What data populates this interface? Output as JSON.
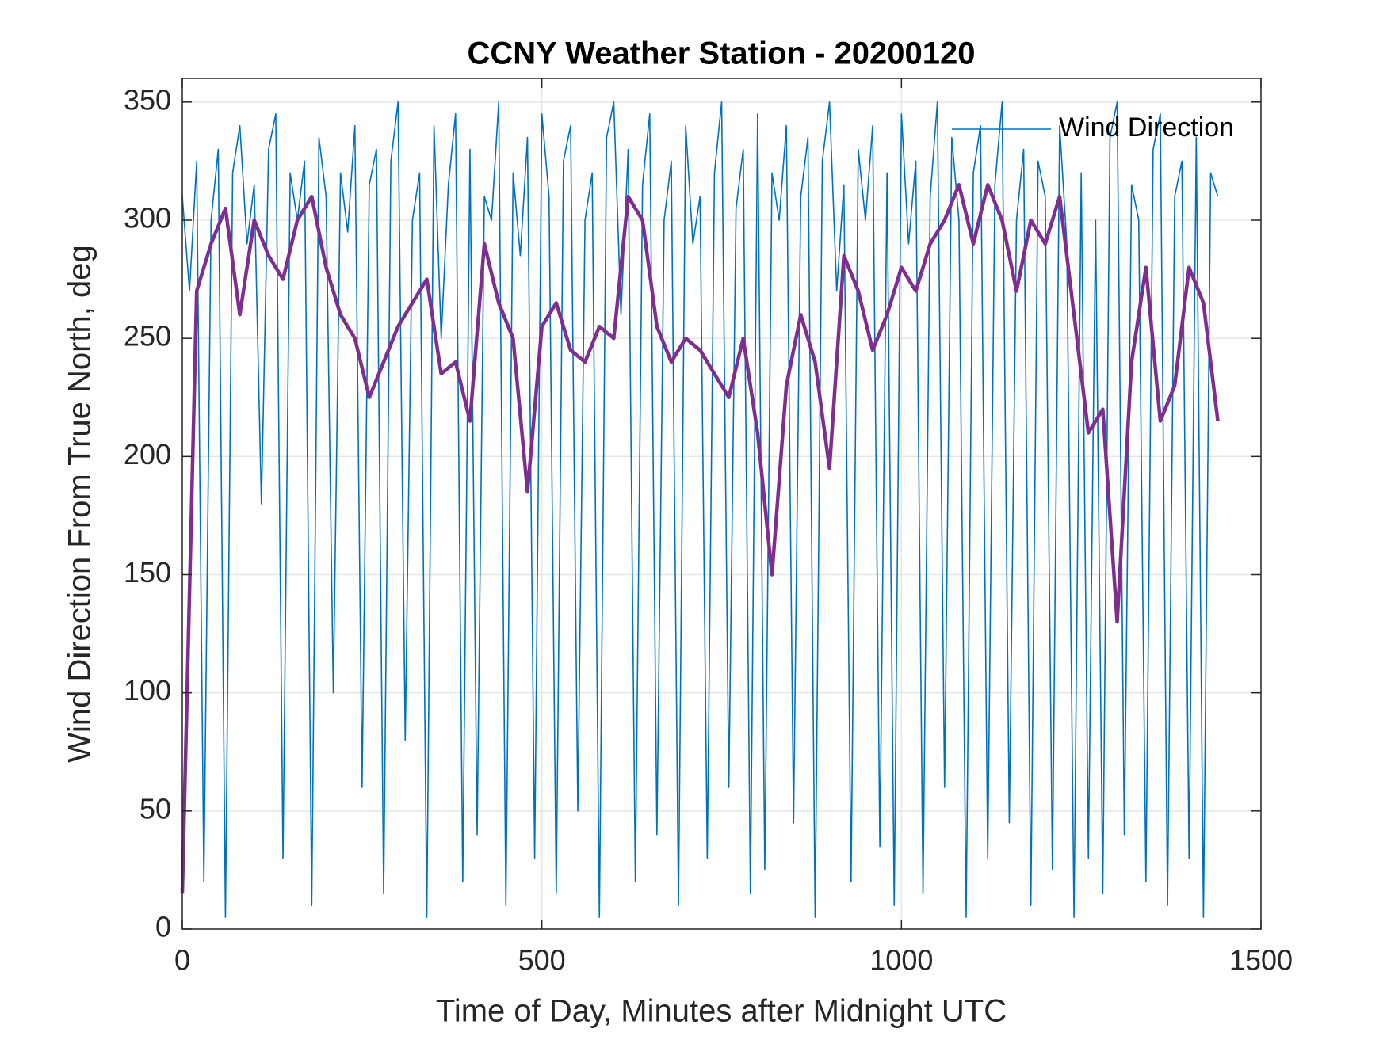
{
  "chart_data": {
    "type": "line",
    "title": "CCNY Weather Station - 20200120",
    "xlabel": "Time of Day, Minutes after Midnight UTC",
    "ylabel": "Wind Direction From True North, deg",
    "xlim": [
      0,
      1500
    ],
    "xticks": [
      0,
      500,
      1000,
      1500
    ],
    "ylim": [
      0,
      360
    ],
    "yticks": [
      0,
      50,
      100,
      150,
      200,
      250,
      300,
      350
    ],
    "grid": true,
    "legend": "upper right",
    "series": [
      {
        "name": "Wind Direction",
        "color": "#0072bd",
        "x": [
          0,
          10,
          20,
          30,
          40,
          50,
          60,
          70,
          80,
          90,
          100,
          110,
          120,
          130,
          140,
          150,
          160,
          170,
          180,
          190,
          200,
          210,
          220,
          230,
          240,
          250,
          260,
          270,
          280,
          290,
          300,
          310,
          320,
          330,
          340,
          350,
          360,
          370,
          380,
          390,
          400,
          410,
          420,
          430,
          440,
          450,
          460,
          470,
          480,
          490,
          500,
          510,
          520,
          530,
          540,
          550,
          560,
          570,
          580,
          590,
          600,
          610,
          620,
          630,
          640,
          650,
          660,
          670,
          680,
          690,
          700,
          710,
          720,
          730,
          740,
          750,
          760,
          770,
          780,
          790,
          800,
          810,
          820,
          830,
          840,
          850,
          860,
          870,
          880,
          890,
          900,
          910,
          920,
          930,
          940,
          950,
          960,
          970,
          980,
          990,
          1000,
          1010,
          1020,
          1030,
          1040,
          1050,
          1060,
          1070,
          1080,
          1090,
          1100,
          1110,
          1120,
          1130,
          1140,
          1150,
          1160,
          1170,
          1180,
          1190,
          1200,
          1210,
          1220,
          1230,
          1240,
          1250,
          1260,
          1270,
          1280,
          1290,
          1300,
          1310,
          1320,
          1330,
          1340,
          1350,
          1360,
          1370,
          1380,
          1390,
          1400,
          1410,
          1420,
          1430,
          1440
        ],
        "values": [
          310,
          270,
          325,
          20,
          300,
          330,
          5,
          320,
          340,
          290,
          315,
          180,
          330,
          345,
          30,
          320,
          300,
          325,
          10,
          335,
          310,
          100,
          320,
          295,
          340,
          60,
          315,
          330,
          15,
          325,
          350,
          80,
          300,
          320,
          5,
          340,
          250,
          315,
          345,
          20,
          330,
          40,
          310,
          300,
          350,
          10,
          320,
          285,
          335,
          30,
          345,
          310,
          15,
          325,
          340,
          50,
          300,
          320,
          5,
          335,
          350,
          260,
          330,
          20,
          315,
          345,
          40,
          300,
          325,
          10,
          340,
          290,
          310,
          30,
          320,
          350,
          60,
          305,
          330,
          15,
          345,
          25,
          320,
          300,
          340,
          45,
          310,
          335,
          5,
          325,
          350,
          270,
          315,
          20,
          330,
          300,
          340,
          35,
          320,
          10,
          345,
          290,
          325,
          15,
          310,
          350,
          60,
          335,
          300,
          5,
          320,
          340,
          30,
          315,
          350,
          45,
          300,
          330,
          10,
          325,
          310,
          25,
          340,
          290,
          5,
          320,
          30,
          300,
          15,
          335,
          350,
          40,
          315,
          300,
          20,
          330,
          345,
          10,
          310,
          325,
          30,
          335,
          5,
          320,
          310
        ]
      },
      {
        "color": "#7e2f8e",
        "x": [
          0,
          20,
          40,
          60,
          80,
          100,
          120,
          140,
          160,
          180,
          200,
          220,
          240,
          260,
          280,
          300,
          320,
          340,
          360,
          380,
          400,
          420,
          440,
          460,
          480,
          500,
          520,
          540,
          560,
          580,
          600,
          620,
          640,
          660,
          680,
          700,
          720,
          740,
          760,
          780,
          800,
          820,
          840,
          860,
          880,
          900,
          920,
          940,
          960,
          980,
          1000,
          1020,
          1040,
          1060,
          1080,
          1100,
          1120,
          1140,
          1160,
          1180,
          1200,
          1220,
          1240,
          1260,
          1280,
          1300,
          1320,
          1340,
          1360,
          1380,
          1400,
          1420,
          1440
        ],
        "values": [
          15,
          270,
          290,
          305,
          260,
          300,
          285,
          275,
          300,
          310,
          280,
          260,
          250,
          225,
          240,
          255,
          265,
          275,
          235,
          240,
          215,
          290,
          265,
          250,
          185,
          255,
          265,
          245,
          240,
          255,
          250,
          310,
          300,
          255,
          240,
          250,
          245,
          235,
          225,
          250,
          210,
          150,
          230,
          260,
          240,
          195,
          285,
          270,
          245,
          260,
          280,
          270,
          290,
          300,
          315,
          290,
          315,
          300,
          270,
          300,
          290,
          310,
          260,
          210,
          220,
          130,
          240,
          280,
          215,
          230,
          280,
          265,
          215
        ]
      }
    ]
  }
}
